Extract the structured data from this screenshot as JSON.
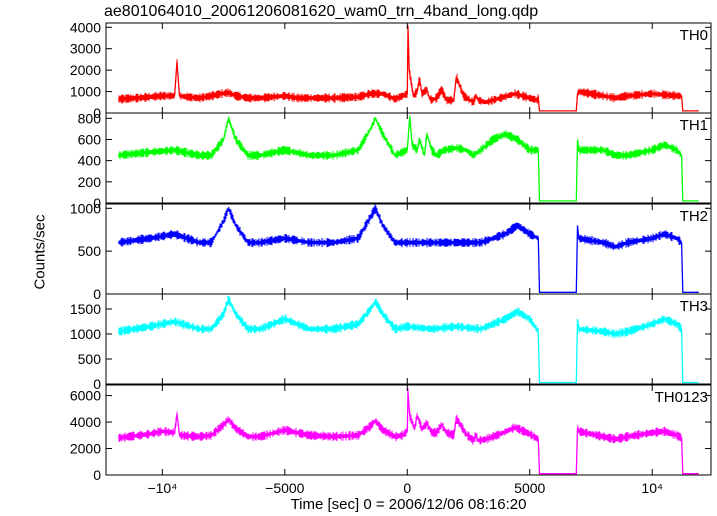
{
  "chart_data": {
    "type": "line",
    "title": "ae801064010_20061206081620_wam0_trn_4band_long.qdp",
    "xlabel": "Time [sec] 0 = 2006/12/06 08:16:20",
    "ylabel": "Counts/sec",
    "xlim": [
      -12300,
      12400
    ],
    "x_ticks": [
      {
        "value": -10000,
        "label": "−10⁴"
      },
      {
        "value": -5000,
        "label": "−5000"
      },
      {
        "value": 0,
        "label": "0"
      },
      {
        "value": 5000,
        "label": "5000"
      },
      {
        "value": 10000,
        "label": "10⁴"
      }
    ],
    "grid": false,
    "panels": [
      {
        "name": "TH0",
        "color": "#ff0000",
        "ylim": [
          0,
          4200
        ],
        "y_ticks": [
          0,
          1000,
          2000,
          3000,
          4000
        ],
        "x": [
          -11800,
          -11000,
          -10000,
          -9500,
          -9400,
          -9300,
          -9000,
          -8500,
          -8000,
          -7600,
          -7300,
          -7000,
          -6500,
          -6000,
          -5000,
          -4500,
          -4000,
          -3000,
          -2000,
          -1500,
          -1000,
          -500,
          -200,
          0,
          30,
          80,
          150,
          250,
          400,
          500,
          600,
          800,
          900,
          1000,
          1200,
          1400,
          1600,
          1900,
          2000,
          2300,
          2700,
          2800,
          2900,
          3200,
          3800,
          4400,
          5000,
          5300,
          5350,
          5400,
          6900,
          6950,
          7000,
          8000,
          8500,
          9000,
          10000,
          10500,
          11000,
          11200,
          11250,
          11300,
          11900
        ],
        "values": [
          650,
          700,
          800,
          800,
          2400,
          800,
          750,
          700,
          800,
          900,
          950,
          800,
          700,
          700,
          800,
          700,
          700,
          700,
          750,
          900,
          900,
          650,
          800,
          900,
          4000,
          2000,
          1500,
          800,
          1000,
          1600,
          900,
          1100,
          700,
          600,
          700,
          1100,
          600,
          600,
          1700,
          800,
          500,
          800,
          600,
          500,
          700,
          900,
          700,
          600,
          700,
          100,
          100,
          900,
          1000,
          800,
          700,
          800,
          900,
          850,
          800,
          800,
          100,
          100,
          100
        ]
      },
      {
        "name": "TH1",
        "color": "#00ff00",
        "ylim": [
          0,
          850
        ],
        "y_ticks": [
          0,
          200,
          400,
          600,
          800
        ],
        "x": [
          -11800,
          -10500,
          -9500,
          -8500,
          -8000,
          -7500,
          -7300,
          -7000,
          -6500,
          -6000,
          -5000,
          -4000,
          -3000,
          -2000,
          -1500,
          -1300,
          -1000,
          -500,
          0,
          100,
          200,
          400,
          500,
          700,
          800,
          1000,
          1200,
          1500,
          2000,
          2400,
          2700,
          3000,
          3500,
          4000,
          4500,
          5000,
          5350,
          5400,
          6900,
          6950,
          7000,
          8000,
          8500,
          9000,
          10000,
          10500,
          11000,
          11200,
          11250,
          11900
        ],
        "values": [
          450,
          480,
          500,
          450,
          450,
          600,
          800,
          600,
          450,
          450,
          500,
          450,
          450,
          500,
          700,
          800,
          650,
          450,
          500,
          820,
          550,
          500,
          600,
          450,
          650,
          500,
          450,
          500,
          520,
          500,
          450,
          500,
          600,
          650,
          600,
          500,
          500,
          20,
          20,
          600,
          500,
          500,
          450,
          450,
          500,
          550,
          500,
          450,
          20,
          20
        ]
      },
      {
        "name": "TH2",
        "color": "#0000ff",
        "ylim": [
          0,
          1050
        ],
        "y_ticks": [
          0,
          500,
          1000
        ],
        "x": [
          -11800,
          -10500,
          -9500,
          -8500,
          -8000,
          -7500,
          -7300,
          -7000,
          -6500,
          -6000,
          -5000,
          -4000,
          -3000,
          -2000,
          -1500,
          -1300,
          -1000,
          -500,
          0,
          1000,
          2000,
          3000,
          3500,
          4000,
          4500,
          5000,
          5350,
          5400,
          6900,
          6950,
          7000,
          8000,
          8500,
          9000,
          10000,
          10500,
          11000,
          11200,
          11250,
          11900
        ],
        "values": [
          600,
          650,
          700,
          600,
          600,
          850,
          1000,
          800,
          600,
          600,
          650,
          600,
          600,
          650,
          900,
          1000,
          800,
          600,
          600,
          600,
          600,
          600,
          650,
          700,
          800,
          700,
          650,
          20,
          20,
          800,
          650,
          600,
          550,
          600,
          650,
          700,
          650,
          600,
          20,
          20
        ]
      },
      {
        "name": "TH3",
        "color": "#00ffff",
        "ylim": [
          0,
          1800
        ],
        "y_ticks": [
          0,
          500,
          1000,
          1500
        ],
        "x": [
          -11800,
          -10500,
          -9500,
          -8500,
          -8000,
          -7500,
          -7300,
          -7000,
          -6500,
          -6000,
          -5000,
          -4000,
          -3000,
          -2000,
          -1500,
          -1300,
          -1000,
          -500,
          0,
          1000,
          2000,
          3000,
          3500,
          4000,
          4500,
          5000,
          5350,
          5400,
          6900,
          6950,
          7000,
          8000,
          8500,
          9000,
          10000,
          10500,
          11000,
          11200,
          11250,
          11900
        ],
        "values": [
          1050,
          1150,
          1250,
          1100,
          1100,
          1400,
          1700,
          1400,
          1100,
          1100,
          1300,
          1100,
          1100,
          1200,
          1500,
          1650,
          1400,
          1100,
          1150,
          1100,
          1150,
          1100,
          1200,
          1300,
          1450,
          1300,
          1050,
          30,
          30,
          1300,
          1100,
          1050,
          1000,
          1050,
          1200,
          1300,
          1200,
          1100,
          30,
          30
        ]
      },
      {
        "name": "TH0123",
        "color": "#ff00ff",
        "ylim": [
          0,
          6800
        ],
        "y_ticks": [
          0,
          2000,
          4000,
          6000
        ],
        "x": [
          -11800,
          -10500,
          -10000,
          -9500,
          -9400,
          -9300,
          -8500,
          -8000,
          -7500,
          -7300,
          -7000,
          -6500,
          -6000,
          -5000,
          -4000,
          -3000,
          -2000,
          -1500,
          -1300,
          -1000,
          -500,
          -200,
          0,
          30,
          100,
          200,
          300,
          400,
          600,
          800,
          1000,
          1200,
          1400,
          1600,
          1900,
          2000,
          2400,
          2700,
          2800,
          2900,
          3200,
          3800,
          4400,
          5000,
          5350,
          5400,
          6900,
          6950,
          7000,
          8000,
          8500,
          9000,
          10000,
          10500,
          11000,
          11200,
          11250,
          11900
        ],
        "values": [
          2800,
          3100,
          3300,
          3200,
          4600,
          3000,
          2900,
          3000,
          3800,
          4200,
          3500,
          2900,
          2900,
          3400,
          3000,
          2900,
          3000,
          3700,
          4100,
          3400,
          2900,
          3000,
          3300,
          6300,
          4500,
          4000,
          3500,
          4500,
          3500,
          3900,
          3200,
          3200,
          3800,
          3200,
          3000,
          4300,
          3100,
          2600,
          3000,
          2600,
          2700,
          3100,
          3600,
          3100,
          2700,
          100,
          100,
          3600,
          3300,
          2900,
          2700,
          2900,
          3200,
          3300,
          3000,
          2800,
          100,
          100
        ]
      }
    ]
  }
}
